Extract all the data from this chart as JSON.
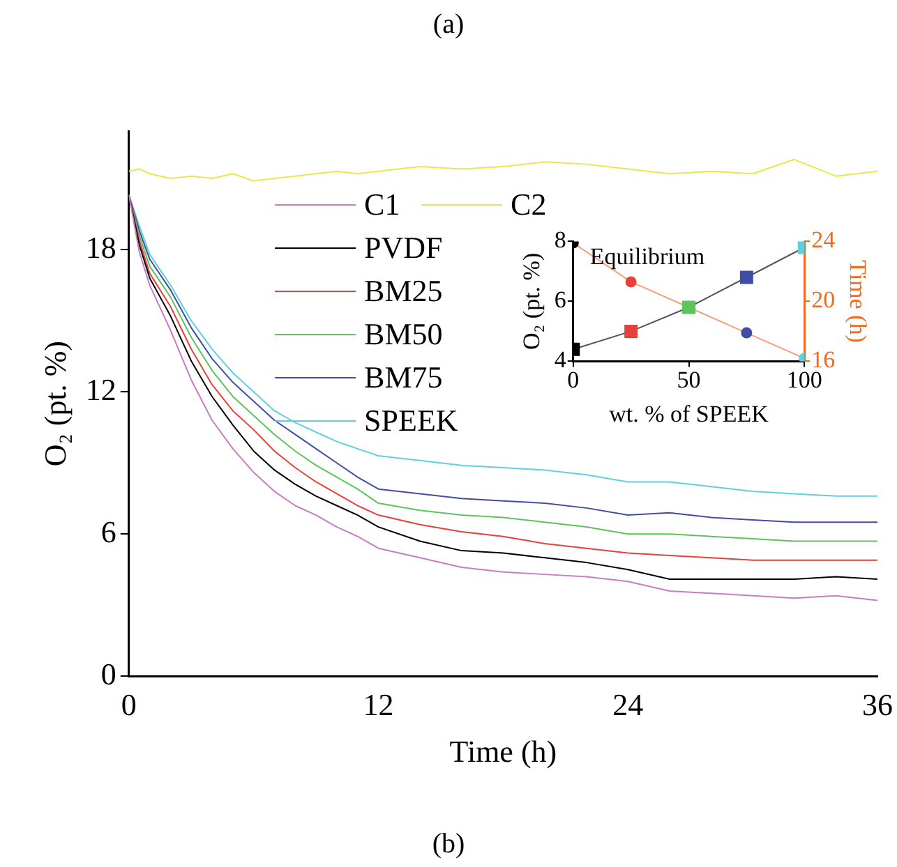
{
  "chart_data": [
    {
      "type": "line",
      "xlabel": "Time (h)",
      "ylabel": "O₂ (pt. %)",
      "annotations": [
        "(a)",
        "(b)"
      ],
      "x": [
        0,
        0.5,
        1,
        2,
        3,
        4,
        5,
        6,
        7,
        8,
        9,
        10,
        11,
        12,
        14,
        16,
        18,
        20,
        22,
        24,
        26,
        28,
        30,
        32,
        34,
        36
      ],
      "xlim": [
        0,
        36
      ],
      "xticks": [
        0,
        12,
        24,
        36
      ],
      "ylim": [
        0,
        23
      ],
      "yticks": [
        0,
        6,
        12,
        18
      ],
      "grid": false,
      "legend": "top",
      "marker": "none",
      "series": [
        {
          "name": "C1",
          "color": "#c77cc4",
          "values": [
            20.3,
            17.9,
            16.5,
            14.6,
            12.5,
            10.8,
            9.6,
            8.6,
            7.8,
            7.2,
            6.8,
            6.3,
            5.9,
            5.4,
            5.0,
            4.6,
            4.4,
            4.3,
            4.2,
            4.0,
            3.6,
            3.5,
            3.4,
            3.3,
            3.4,
            3.2
          ]
        },
        {
          "name": "C2",
          "color": "#e8e84a",
          "values": [
            21.3,
            21.4,
            21.2,
            21.0,
            21.1,
            21.0,
            21.2,
            20.9,
            21.0,
            21.1,
            21.2,
            21.3,
            21.2,
            21.3,
            21.5,
            21.4,
            21.5,
            21.7,
            21.6,
            21.4,
            21.2,
            21.3,
            21.2,
            21.8,
            21.1,
            21.3
          ]
        },
        {
          "name": "PVDF",
          "color": "#000000",
          "values": [
            20.3,
            18.2,
            16.8,
            15.2,
            13.3,
            11.8,
            10.6,
            9.5,
            8.7,
            8.1,
            7.6,
            7.2,
            6.8,
            6.3,
            5.7,
            5.3,
            5.2,
            5.0,
            4.8,
            4.5,
            4.1,
            4.1,
            4.1,
            4.1,
            4.2,
            4.1
          ]
        },
        {
          "name": "BM25",
          "color": "#e8403a",
          "values": [
            20.3,
            18.4,
            17.0,
            15.6,
            13.8,
            12.3,
            11.2,
            10.4,
            9.5,
            8.8,
            8.2,
            7.7,
            7.2,
            6.8,
            6.4,
            6.1,
            5.9,
            5.6,
            5.4,
            5.2,
            5.1,
            5.0,
            4.9,
            4.9,
            4.9,
            4.9
          ]
        },
        {
          "name": "BM50",
          "color": "#5cc45a",
          "values": [
            20.3,
            18.6,
            17.3,
            16.0,
            14.3,
            12.9,
            11.8,
            11.0,
            10.2,
            9.5,
            8.9,
            8.4,
            7.9,
            7.3,
            7.0,
            6.8,
            6.7,
            6.5,
            6.3,
            6.0,
            6.0,
            5.9,
            5.8,
            5.7,
            5.7,
            5.7
          ]
        },
        {
          "name": "BM75",
          "color": "#3f4da8",
          "values": [
            20.3,
            18.8,
            17.6,
            16.3,
            14.7,
            13.4,
            12.4,
            11.6,
            10.8,
            10.2,
            9.6,
            9.0,
            8.4,
            7.9,
            7.7,
            7.5,
            7.4,
            7.3,
            7.1,
            6.8,
            6.9,
            6.7,
            6.6,
            6.5,
            6.5,
            6.5
          ]
        },
        {
          "name": "SPEEK",
          "color": "#5fd0e0",
          "values": [
            20.3,
            19.0,
            17.8,
            16.5,
            15.0,
            13.8,
            12.8,
            12.0,
            11.2,
            10.7,
            10.3,
            9.9,
            9.6,
            9.3,
            9.1,
            8.9,
            8.8,
            8.7,
            8.5,
            8.2,
            8.2,
            8.0,
            7.8,
            7.7,
            7.6,
            7.6
          ]
        }
      ]
    },
    {
      "type": "line",
      "xlabel": "wt. % of SPEEK",
      "ylabel": "O₂ (pt. %)",
      "y2label": "Time (h)",
      "annotations": [
        "Equilibrium"
      ],
      "x": [
        0,
        25,
        50,
        75,
        100
      ],
      "xlim": [
        0,
        100
      ],
      "xticks": [
        0,
        50,
        100
      ],
      "ylim": [
        4,
        8
      ],
      "yticks": [
        4,
        6,
        8
      ],
      "y2lim": [
        16,
        24
      ],
      "y2ticks": [
        16,
        20,
        24
      ],
      "grid": false,
      "series": [
        {
          "color": "#555555",
          "marker": "square",
          "colors": [
            "#000000",
            "#e8403a",
            "#5cc45a",
            "#3f4da8",
            "#5fd0e0"
          ],
          "values": [
            4.4,
            5.0,
            5.8,
            6.8,
            7.8
          ]
        },
        {
          "axis": "y2",
          "color": "#f4a07a",
          "marker": "circle",
          "colors": [
            "#000000",
            "#e8403a",
            "#5cc45a",
            "#3f4da8",
            "#5fd0e0"
          ],
          "values": [
            23.9,
            21.3,
            19.6,
            17.9,
            16.2
          ]
        }
      ]
    }
  ]
}
